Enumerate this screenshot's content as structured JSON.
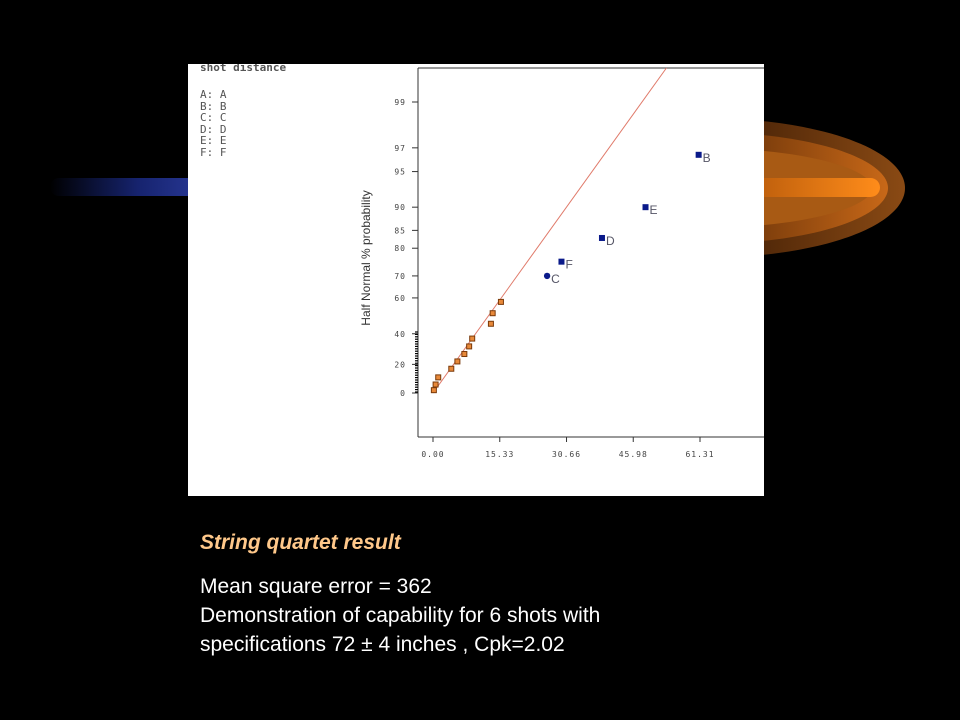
{
  "legend": {
    "title": "shot distance",
    "items": [
      "A: A",
      "B: B",
      "C: C",
      "D: D",
      "E: E",
      "F: F"
    ]
  },
  "caption": {
    "subtitle": "String quartet result",
    "lines": [
      "Mean square error = 362",
      "Demonstration of capability for 6 shots with",
      "specifications 72 ± 4 inches , Cpk=2.02"
    ]
  },
  "colors": {
    "background": "#000000",
    "subtitle": "#ffc88a",
    "line": "#e07a6a",
    "effect_points": "#0a1a8a",
    "error_points": "#e8893a",
    "flare": "#ff8c1a"
  },
  "chart_data": {
    "type": "scatter",
    "title": "",
    "xlabel": "",
    "ylabel": "Half Normal % probability",
    "x_ticks": [
      "0.00",
      "15.33",
      "30.66",
      "45.98",
      "61.31"
    ],
    "xlim": [
      0,
      61.31
    ],
    "y_ticks": [
      "0",
      "20",
      "40",
      "60",
      "70",
      "80",
      "85",
      "90",
      "95",
      "97",
      "99"
    ],
    "y_tick_values": [
      0,
      20,
      40,
      60,
      70,
      80,
      85,
      90,
      95,
      97,
      99
    ],
    "y_scale": "half-normal probability",
    "reference_line": {
      "from": [
        0,
        0
      ],
      "to": [
        61.31,
        99.9
      ]
    },
    "labeled_effects": [
      {
        "label": "C",
        "x": 26.2,
        "y": 70
      },
      {
        "label": "F",
        "x": 29.5,
        "y": 75.5
      },
      {
        "label": "D",
        "x": 38.8,
        "y": 83
      },
      {
        "label": "E",
        "x": 48.8,
        "y": 90
      },
      {
        "label": "B",
        "x": 61.0,
        "y": 96.5
      }
    ],
    "error_points": [
      {
        "x": 0.2,
        "y": 2
      },
      {
        "x": 0.6,
        "y": 6
      },
      {
        "x": 1.2,
        "y": 11
      },
      {
        "x": 4.2,
        "y": 17
      },
      {
        "x": 5.6,
        "y": 22
      },
      {
        "x": 7.2,
        "y": 27
      },
      {
        "x": 8.3,
        "y": 32
      },
      {
        "x": 9.0,
        "y": 37
      },
      {
        "x": 13.3,
        "y": 46
      },
      {
        "x": 13.7,
        "y": 52
      },
      {
        "x": 15.6,
        "y": 58
      }
    ],
    "grid": false,
    "legend_position": "top-left"
  }
}
